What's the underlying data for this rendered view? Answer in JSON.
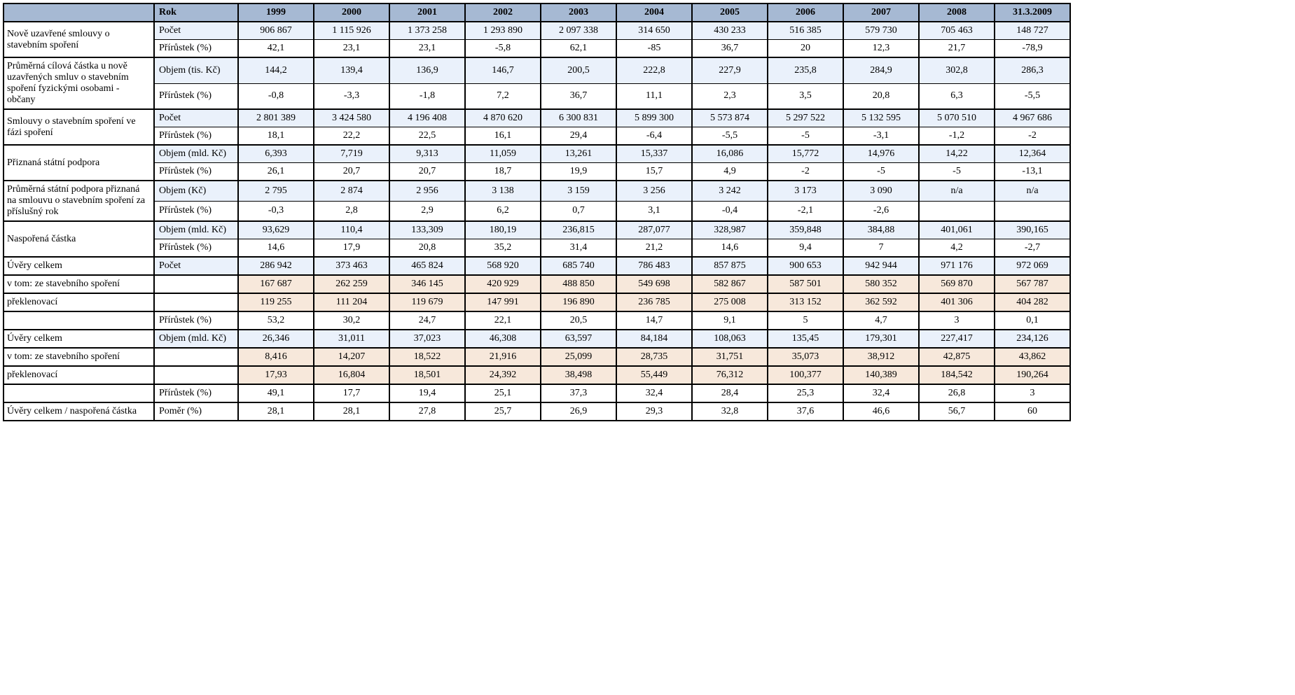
{
  "header": {
    "rok_label": "Rok",
    "years": [
      "1999",
      "2000",
      "2001",
      "2002",
      "2003",
      "2004",
      "2005",
      "2006",
      "2007",
      "2008",
      "31.3.2009"
    ]
  },
  "col_widths": {
    "indicator": 215,
    "sublabel": 120,
    "data": 108
  },
  "colors": {
    "header_bg": "#a6b9d3",
    "blue_bg": "#eaf1fb",
    "peach_bg": "#f7e8db",
    "white_bg": "#ffffff",
    "border": "#000000"
  },
  "typography": {
    "font_family": "Times New Roman",
    "font_size_pt": 11
  },
  "sections": [
    {
      "id": "s1",
      "label": "Nově uzavřené smlouvy o stavebním spoření",
      "rows": [
        {
          "id": "s1r1",
          "sublabel": "Počet",
          "style": "blue",
          "values": [
            "906 867",
            "1 115 926",
            "1 373 258",
            "1 293 890",
            "2 097 338",
            "314 650",
            "430 233",
            "516 385",
            "579 730",
            "705 463",
            "148 727"
          ]
        },
        {
          "id": "s1r2",
          "sublabel": "Přírůstek (%)",
          "style": "white",
          "values": [
            "42,1",
            "23,1",
            "23,1",
            "-5,8",
            "62,1",
            "-85",
            "36,7",
            "20",
            "12,3",
            "21,7",
            "-78,9"
          ]
        }
      ]
    },
    {
      "id": "s2",
      "label": "Průměrná cílová částka u nově uzavřených smluv o stavebním spoření fyzickými osobami - občany",
      "rows": [
        {
          "id": "s2r1",
          "sublabel": "Objem (tis. Kč)",
          "style": "blue",
          "values": [
            "144,2",
            "139,4",
            "136,9",
            "146,7",
            "200,5",
            "222,8",
            "227,9",
            "235,8",
            "284,9",
            "302,8",
            "286,3"
          ]
        },
        {
          "id": "s2r2",
          "sublabel": "Přírůstek (%)",
          "style": "white",
          "values": [
            "-0,8",
            "-3,3",
            "-1,8",
            "7,2",
            "36,7",
            "11,1",
            "2,3",
            "3,5",
            "20,8",
            "6,3",
            "-5,5"
          ]
        }
      ]
    },
    {
      "id": "s3",
      "label": "Smlouvy o stavebním spoření ve fázi spoření",
      "rows": [
        {
          "id": "s3r1",
          "sublabel": "Počet",
          "style": "blue",
          "values": [
            "2 801 389",
            "3 424 580",
            "4 196 408",
            "4 870 620",
            "6 300 831",
            "5 899 300",
            "5 573 874",
            "5 297 522",
            "5 132 595",
            "5 070 510",
            "4 967 686"
          ]
        },
        {
          "id": "s3r2",
          "sublabel": "Přírůstek (%)",
          "style": "white",
          "values": [
            "18,1",
            "22,2",
            "22,5",
            "16,1",
            "29,4",
            "-6,4",
            "-5,5",
            "-5",
            "-3,1",
            "-1,2",
            "-2"
          ]
        }
      ]
    },
    {
      "id": "s4",
      "label": "Přiznaná státní podpora",
      "rows": [
        {
          "id": "s4r1",
          "sublabel": "Objem (mld. Kč)",
          "style": "blue",
          "values": [
            "6,393",
            "7,719",
            "9,313",
            "11,059",
            "13,261",
            "15,337",
            "16,086",
            "15,772",
            "14,976",
            "14,22",
            "12,364"
          ]
        },
        {
          "id": "s4r2",
          "sublabel": "Přírůstek (%)",
          "style": "white",
          "values": [
            "26,1",
            "20,7",
            "20,7",
            "18,7",
            "19,9",
            "15,7",
            "4,9",
            "-2",
            "-5",
            "-5",
            "-13,1"
          ]
        }
      ]
    },
    {
      "id": "s5",
      "label": "Průměrná státní podpora přiznaná na smlouvu o stavebním spoření za příslušný rok",
      "rows": [
        {
          "id": "s5r1",
          "sublabel": "Objem (Kč)",
          "style": "blue",
          "values": [
            "2 795",
            "2 874",
            "2 956",
            "3 138",
            "3 159",
            "3 256",
            "3 242",
            "3 173",
            "3 090",
            "n/a",
            "n/a"
          ]
        },
        {
          "id": "s5r2",
          "sublabel": "Přírůstek (%)",
          "style": "white",
          "values": [
            "-0,3",
            "2,8",
            "2,9",
            "6,2",
            "0,7",
            "3,1",
            "-0,4",
            "-2,1",
            "-2,6",
            "",
            ""
          ]
        }
      ]
    },
    {
      "id": "s6",
      "label": "Naspořená částka",
      "rows": [
        {
          "id": "s6r1",
          "sublabel": "Objem (mld. Kč)",
          "style": "blue",
          "values": [
            "93,629",
            "110,4",
            "133,309",
            "180,19",
            "236,815",
            "287,077",
            "328,987",
            "359,848",
            "384,88",
            "401,061",
            "390,165"
          ]
        },
        {
          "id": "s6r2",
          "sublabel": "Přírůstek (%)",
          "style": "white",
          "values": [
            "14,6",
            "17,9",
            "20,8",
            "35,2",
            "31,4",
            "21,2",
            "14,6",
            "9,4",
            "7",
            "4,2",
            "-2,7"
          ]
        }
      ]
    },
    {
      "id": "s7",
      "label": "Úvěry celkem",
      "rows": [
        {
          "id": "s7r1",
          "sublabel": "Počet",
          "style": "blue",
          "values": [
            "286 942",
            "373 463",
            "465 824",
            "568 920",
            "685 740",
            "786 483",
            "857 875",
            "900 653",
            "942 944",
            "971 176",
            "972 069"
          ]
        }
      ]
    },
    {
      "id": "s8",
      "label": "v tom: ze stavebního spoření",
      "rows": [
        {
          "id": "s8r1",
          "sublabel": "",
          "style": "peach",
          "values": [
            "167 687",
            "262 259",
            "346 145",
            "420 929",
            "488 850",
            "549 698",
            "582 867",
            "587 501",
            "580 352",
            "569 870",
            "567 787"
          ]
        }
      ]
    },
    {
      "id": "s9",
      "label": "překlenovací",
      "rows": [
        {
          "id": "s9r1",
          "sublabel": "",
          "style": "peach",
          "values": [
            "119 255",
            "111 204",
            "119 679",
            "147 991",
            "196 890",
            "236 785",
            "275 008",
            "313 152",
            "362 592",
            "401 306",
            "404 282"
          ]
        }
      ]
    },
    {
      "id": "s10",
      "label": "",
      "rows": [
        {
          "id": "s10r1",
          "sublabel": "Přírůstek (%)",
          "style": "white",
          "values": [
            "53,2",
            "30,2",
            "24,7",
            "22,1",
            "20,5",
            "14,7",
            "9,1",
            "5",
            "4,7",
            "3",
            "0,1"
          ]
        }
      ]
    },
    {
      "id": "s11",
      "label": "Úvěry celkem",
      "rows": [
        {
          "id": "s11r1",
          "sublabel": "Objem (mld. Kč)",
          "style": "blue",
          "values": [
            "26,346",
            "31,011",
            "37,023",
            "46,308",
            "63,597",
            "84,184",
            "108,063",
            "135,45",
            "179,301",
            "227,417",
            "234,126"
          ]
        }
      ]
    },
    {
      "id": "s12",
      "label": "v tom: ze stavebního spoření",
      "rows": [
        {
          "id": "s12r1",
          "sublabel": "",
          "style": "peach",
          "values": [
            "8,416",
            "14,207",
            "18,522",
            "21,916",
            "25,099",
            "28,735",
            "31,751",
            "35,073",
            "38,912",
            "42,875",
            "43,862"
          ]
        }
      ]
    },
    {
      "id": "s13",
      "label": "překlenovací",
      "rows": [
        {
          "id": "s13r1",
          "sublabel": "",
          "style": "peach",
          "values": [
            "17,93",
            "16,804",
            "18,501",
            "24,392",
            "38,498",
            "55,449",
            "76,312",
            "100,377",
            "140,389",
            "184,542",
            "190,264"
          ]
        }
      ]
    },
    {
      "id": "s14",
      "label": "",
      "rows": [
        {
          "id": "s14r1",
          "sublabel": "Přírůstek (%)",
          "style": "white",
          "values": [
            "49,1",
            "17,7",
            "19,4",
            "25,1",
            "37,3",
            "32,4",
            "28,4",
            "25,3",
            "32,4",
            "26,8",
            "3"
          ]
        }
      ]
    },
    {
      "id": "s15",
      "label": "Úvěry celkem / naspořená částka",
      "rows": [
        {
          "id": "s15r1",
          "sublabel": "Poměr (%)",
          "style": "white",
          "values": [
            "28,1",
            "28,1",
            "27,8",
            "25,7",
            "26,9",
            "29,3",
            "32,8",
            "37,6",
            "46,6",
            "56,7",
            "60"
          ]
        }
      ]
    }
  ]
}
